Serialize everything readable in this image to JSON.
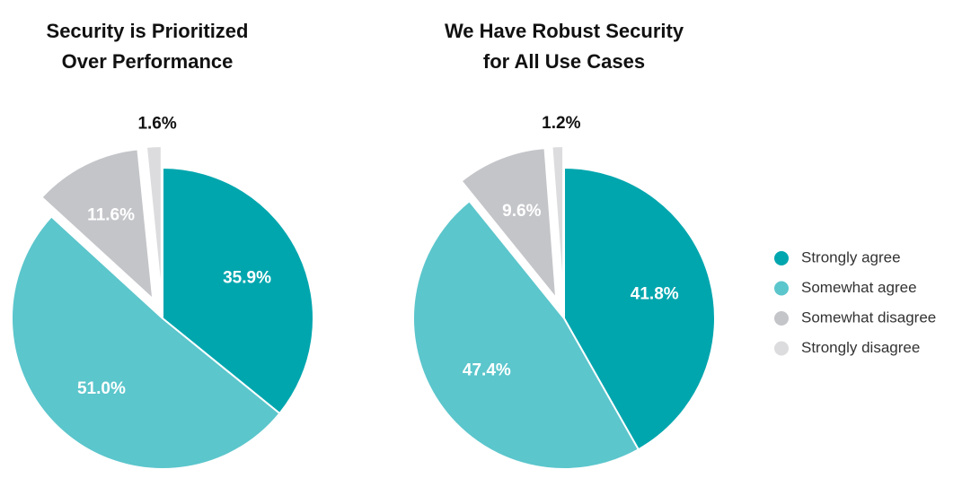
{
  "chart_data": [
    {
      "type": "pie",
      "title": [
        "Security is Prioritized",
        "Over Performance"
      ],
      "categories": [
        "Strongly agree",
        "Somewhat agree",
        "Somewhat disagree",
        "Strongly disagree"
      ],
      "values": [
        35.9,
        51.0,
        11.6,
        1.6
      ],
      "value_labels": [
        "35.9%",
        "51.0%",
        "11.6%",
        "1.6%"
      ],
      "colors": [
        "#00a6ae",
        "#5bc6cc",
        "#c4c5c9",
        "#dcdcde"
      ]
    },
    {
      "type": "pie",
      "title": [
        "We Have Robust Security",
        "for All Use Cases"
      ],
      "categories": [
        "Strongly agree",
        "Somewhat agree",
        "Somewhat disagree",
        "Strongly disagree"
      ],
      "values": [
        41.8,
        47.4,
        9.6,
        1.2
      ],
      "value_labels": [
        "41.8%",
        "47.4%",
        "9.6%",
        "1.2%"
      ],
      "colors": [
        "#00a6ae",
        "#5bc6cc",
        "#c4c5c9",
        "#dcdcde"
      ]
    }
  ]
}
